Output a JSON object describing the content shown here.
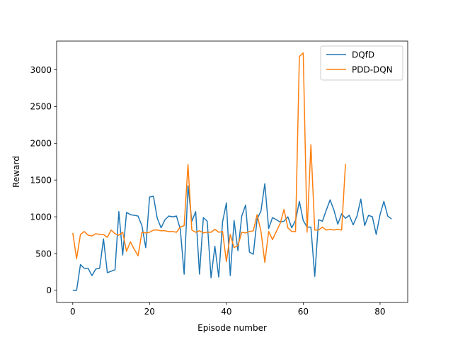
{
  "chart_data": {
    "type": "line",
    "title": "",
    "xlabel": "Episode number",
    "ylabel": "Reward",
    "xlim": [
      -4.2,
      87.2
    ],
    "ylim": [
      -165,
      3390
    ],
    "xticks": [
      0,
      20,
      40,
      60,
      80
    ],
    "yticks": [
      0,
      500,
      1000,
      1500,
      2000,
      2500,
      3000
    ],
    "grid": false,
    "legend_position": "top-right",
    "series": [
      {
        "name": "DQfD",
        "color": "#1f77b4",
        "x": [
          0,
          1,
          2,
          3,
          4,
          5,
          6,
          7,
          8,
          9,
          10,
          11,
          12,
          13,
          14,
          15,
          16,
          17,
          18,
          19,
          20,
          21,
          22,
          23,
          24,
          25,
          26,
          27,
          28,
          29,
          30,
          31,
          32,
          33,
          34,
          35,
          36,
          37,
          38,
          39,
          40,
          41,
          42,
          43,
          44,
          45,
          46,
          47,
          48,
          49,
          50,
          51,
          52,
          53,
          54,
          55,
          56,
          57,
          58,
          59,
          60,
          61,
          62,
          63,
          64,
          65,
          66,
          67,
          68,
          69,
          70,
          71,
          72,
          73,
          74,
          75,
          76,
          77,
          78,
          79,
          80,
          81,
          82,
          83
        ],
        "y": [
          0,
          0,
          350,
          300,
          300,
          200,
          290,
          300,
          700,
          240,
          260,
          280,
          1070,
          480,
          1060,
          1030,
          1020,
          1010,
          880,
          580,
          1270,
          1280,
          980,
          850,
          960,
          1010,
          1000,
          1010,
          830,
          220,
          1420,
          940,
          1070,
          220,
          990,
          940,
          170,
          600,
          180,
          930,
          1190,
          200,
          950,
          540,
          1010,
          1160,
          520,
          490,
          970,
          1080,
          1450,
          840,
          990,
          960,
          930,
          940,
          1000,
          850,
          950,
          1210,
          950,
          860,
          860,
          190,
          960,
          940,
          1090,
          1230,
          1090,
          900,
          1040,
          980,
          1020,
          890,
          1010,
          1240,
          880,
          1020,
          1000,
          760,
          1030,
          1210,
          1010,
          970
        ]
      },
      {
        "name": "PDD-DQN",
        "color": "#ff7f0e",
        "x": [
          0,
          1,
          2,
          3,
          4,
          5,
          6,
          7,
          8,
          9,
          10,
          11,
          12,
          13,
          14,
          15,
          16,
          17,
          18,
          19,
          20,
          21,
          22,
          23,
          24,
          25,
          26,
          27,
          28,
          29,
          30,
          31,
          32,
          33,
          34,
          35,
          36,
          37,
          38,
          39,
          40,
          41,
          42,
          43,
          44,
          45,
          46,
          47,
          48,
          49,
          50,
          51,
          52,
          53,
          54,
          55,
          56,
          57,
          58,
          59,
          60,
          61,
          62,
          63,
          64,
          65,
          66,
          67,
          68,
          69,
          70,
          71
        ],
        "y": [
          780,
          430,
          760,
          800,
          750,
          740,
          770,
          760,
          760,
          720,
          820,
          770,
          750,
          790,
          530,
          660,
          560,
          470,
          790,
          780,
          790,
          820,
          820,
          810,
          810,
          800,
          800,
          790,
          860,
          880,
          1710,
          820,
          790,
          810,
          780,
          790,
          790,
          830,
          790,
          800,
          390,
          760,
          580,
          610,
          790,
          780,
          800,
          810,
          1030,
          800,
          380,
          800,
          690,
          800,
          910,
          1100,
          850,
          800,
          800,
          3180,
          3230,
          790,
          1980,
          820,
          820,
          860,
          820,
          830,
          820,
          830,
          820,
          1720
        ]
      }
    ]
  }
}
